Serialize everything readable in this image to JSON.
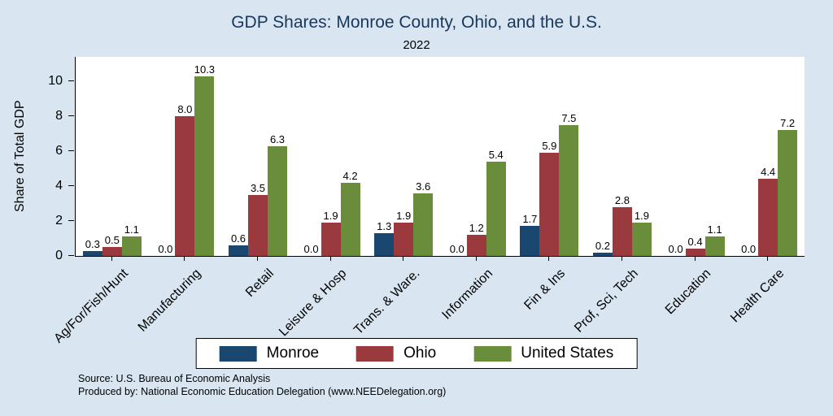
{
  "colors": {
    "background": "#d9e6f1",
    "plot_background": "#ffffff",
    "title": "#17375e",
    "axis": "#000000"
  },
  "notes": [
    "Source: U.S. Bureau of Economic Analysis",
    "Produced by: National Economic Education Delegation (www.NEEDelegation.org)"
  ],
  "chart_data": {
    "type": "bar",
    "title": "GDP Shares: Monroe County, Ohio, and the U.S.",
    "subtitle": "2022",
    "xlabel": "",
    "ylabel": "Share of Total GDP",
    "ylim": [
      0,
      11.4
    ],
    "yticks": [
      0,
      2,
      4,
      6,
      8,
      10
    ],
    "grid": false,
    "legend_position": "bottom",
    "value_labels": true,
    "categories": [
      "Ag/For/Fish/Hunt",
      "Manufacturing",
      "Retail",
      "Leisure & Hosp",
      "Trans. & Ware.",
      "Information",
      "Fin & Ins",
      "Prof, Sci, Tech",
      "Education",
      "Health Care"
    ],
    "series": [
      {
        "name": "Monroe",
        "color": "#1a476f",
        "values": [
          0.3,
          0.0,
          0.6,
          0.0,
          1.3,
          0.0,
          1.7,
          0.2,
          0.0,
          0.0
        ]
      },
      {
        "name": "Ohio",
        "color": "#9a3a3e",
        "values": [
          0.5,
          8.0,
          3.5,
          1.9,
          1.9,
          1.2,
          5.9,
          2.8,
          0.4,
          4.4
        ]
      },
      {
        "name": "United States",
        "color": "#6a8d3b",
        "values": [
          1.1,
          10.3,
          6.3,
          4.2,
          3.6,
          5.4,
          7.5,
          1.9,
          1.1,
          7.2
        ]
      }
    ]
  }
}
